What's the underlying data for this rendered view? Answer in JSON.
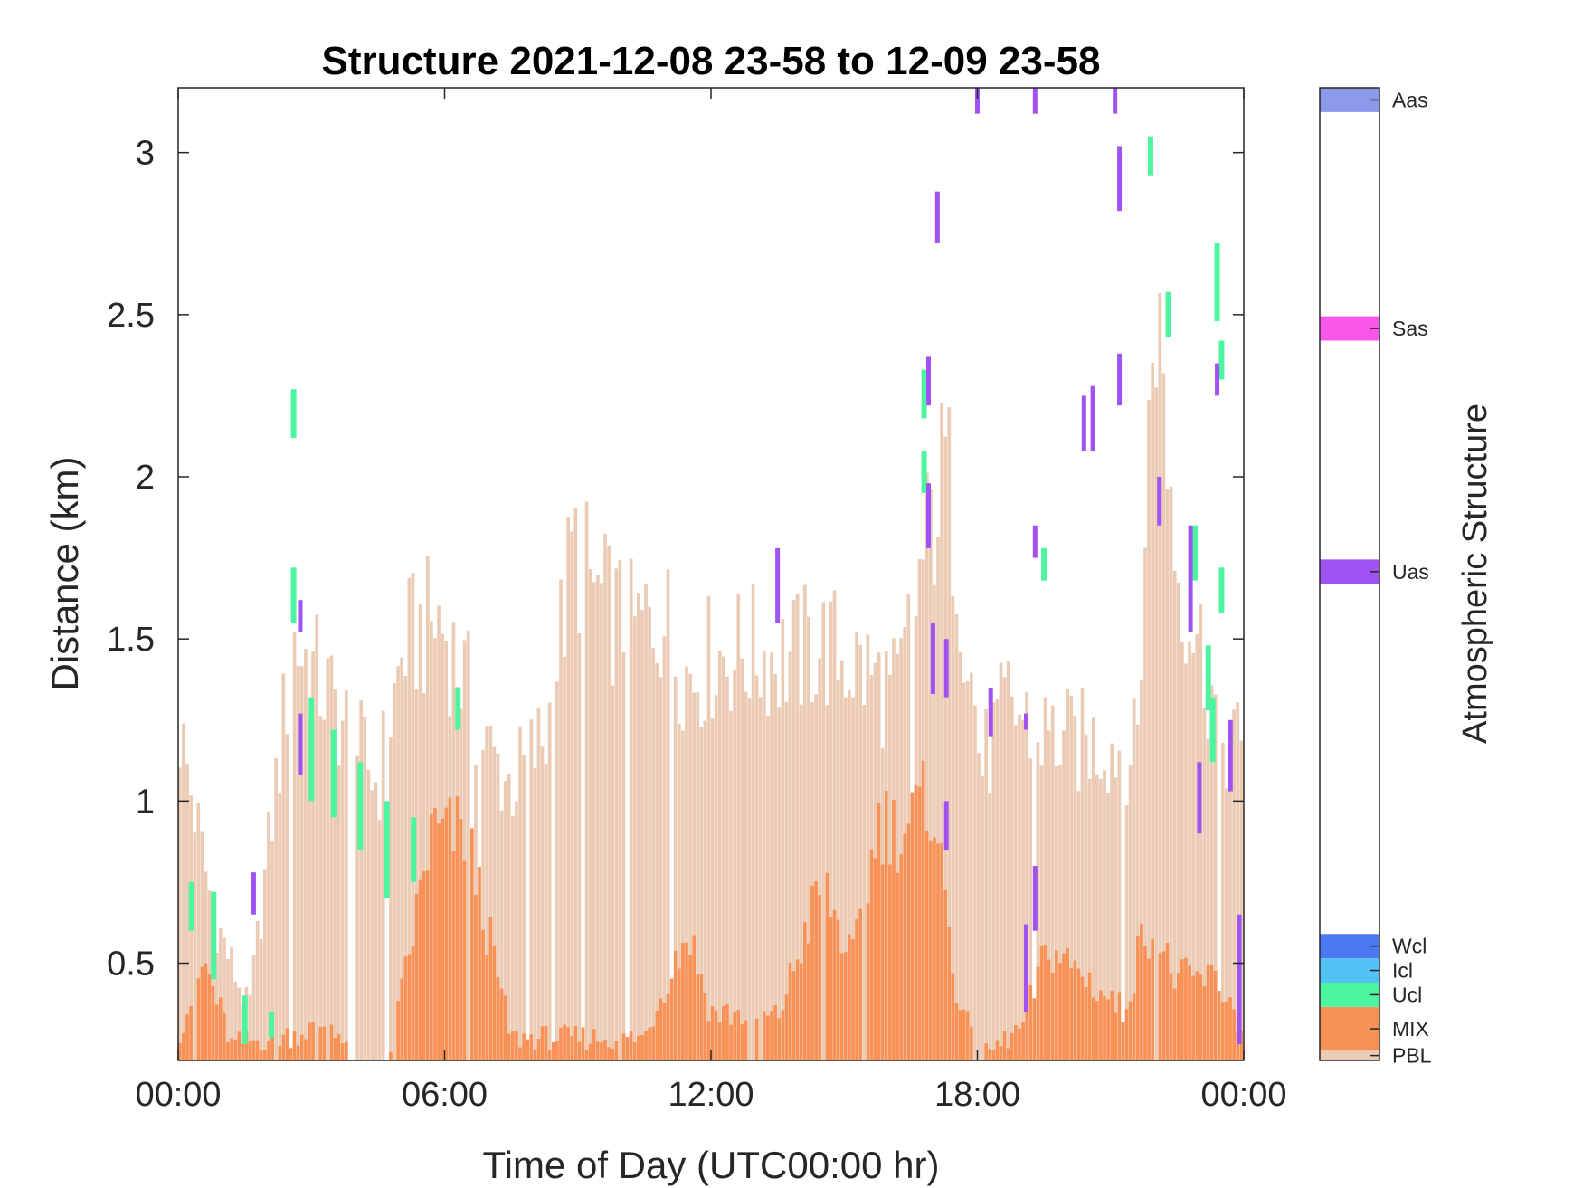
{
  "chart_data": {
    "type": "heatmap",
    "title": "Structure 2021-12-08 23-58 to 12-09 23-58",
    "xlabel": "Time of Day (UTC00:00 hr)",
    "ylabel": "Distance (km)",
    "xlim_hours": [
      0,
      24
    ],
    "ylim": [
      0.2,
      3.2
    ],
    "x_ticks": [
      {
        "value": 0,
        "label": "00:00"
      },
      {
        "value": 6,
        "label": "06:00"
      },
      {
        "value": 12,
        "label": "12:00"
      },
      {
        "value": 18,
        "label": "18:00"
      },
      {
        "value": 24,
        "label": "00:00"
      }
    ],
    "y_ticks": [
      {
        "value": 0.5,
        "label": "0.5"
      },
      {
        "value": 1.0,
        "label": "1"
      },
      {
        "value": 1.5,
        "label": "1.5"
      },
      {
        "value": 2.0,
        "label": "2"
      },
      {
        "value": 2.5,
        "label": "2.5"
      },
      {
        "value": 3.0,
        "label": "3"
      }
    ],
    "grid": false,
    "colorbar": {
      "title": "Atmospheric Structure",
      "classes": [
        {
          "name": "PBL",
          "color": "#ECCBB5",
          "from": 0.0,
          "to": 0.01
        },
        {
          "name": "MIX",
          "color": "#F89155",
          "from": 0.01,
          "to": 0.055
        },
        {
          "name": "Ucl",
          "color": "#4EF5A0",
          "from": 0.055,
          "to": 0.08
        },
        {
          "name": "Icl",
          "color": "#52C2F7",
          "from": 0.08,
          "to": 0.105
        },
        {
          "name": "Wcl",
          "color": "#4C79F1",
          "from": 0.105,
          "to": 0.13
        },
        {
          "name": "Uas",
          "color": "#A052F2",
          "from": 0.49,
          "to": 0.515
        },
        {
          "name": "Sas",
          "color": "#F857EA",
          "from": 0.74,
          "to": 0.765
        },
        {
          "name": "Aas",
          "color": "#8C98E8",
          "from": 0.975,
          "to": 1.0
        }
      ]
    },
    "series": [
      {
        "class": "PBL",
        "hour_step": 0.0833,
        "heights": [
          [
            0.0,
            1.25
          ],
          [
            0.8,
            0.65
          ],
          [
            1.6,
            0.35
          ],
          [
            2.6,
            1.5
          ],
          [
            3.5,
            1.3
          ],
          [
            4.5,
            1.05
          ],
          [
            5.1,
            1.48
          ],
          [
            5.9,
            1.56
          ],
          [
            6.5,
            1.35
          ],
          [
            7.0,
            1.15
          ],
          [
            7.5,
            1.05
          ],
          [
            8.3,
            1.2
          ],
          [
            8.9,
            1.78
          ],
          [
            9.5,
            1.62
          ],
          [
            10.2,
            1.52
          ],
          [
            10.9,
            1.58
          ],
          [
            11.5,
            1.38
          ],
          [
            12.1,
            1.45
          ],
          [
            13.0,
            1.46
          ],
          [
            13.7,
            1.44
          ],
          [
            14.5,
            1.48
          ],
          [
            15.3,
            1.42
          ],
          [
            16.2,
            1.32
          ],
          [
            16.8,
            1.75
          ],
          [
            17.3,
            2.05
          ],
          [
            17.7,
            1.58
          ],
          [
            18.1,
            1.1
          ],
          [
            18.7,
            1.3
          ],
          [
            19.3,
            1.22
          ],
          [
            20.1,
            1.18
          ],
          [
            20.9,
            1.18
          ],
          [
            21.6,
            1.15
          ],
          [
            22.0,
            2.6
          ],
          [
            22.5,
            1.72
          ],
          [
            23.0,
            1.5
          ],
          [
            23.5,
            1.2
          ],
          [
            24.0,
            1.15
          ]
        ]
      },
      {
        "class": "MIX",
        "hour_step": 0.0833,
        "heights": [
          [
            0.0,
            0.28
          ],
          [
            0.6,
            0.5
          ],
          [
            1.2,
            0.25
          ],
          [
            2.6,
            0.28
          ],
          [
            3.5,
            0.32
          ],
          [
            4.5,
            0.0
          ],
          [
            5.7,
            0.9
          ],
          [
            6.5,
            0.9
          ],
          [
            7.5,
            0.27
          ],
          [
            10.5,
            0.27
          ],
          [
            11.0,
            0.45
          ],
          [
            11.5,
            0.6
          ],
          [
            12.0,
            0.35
          ],
          [
            13.5,
            0.33
          ],
          [
            14.5,
            0.75
          ],
          [
            15.2,
            0.5
          ],
          [
            15.8,
            0.95
          ],
          [
            16.3,
            0.9
          ],
          [
            17.0,
            1.02
          ],
          [
            17.5,
            0.45
          ],
          [
            18.0,
            0.2
          ],
          [
            19.0,
            0.3
          ],
          [
            19.6,
            0.55
          ],
          [
            20.5,
            0.45
          ],
          [
            21.3,
            0.35
          ],
          [
            21.8,
            0.62
          ],
          [
            22.5,
            0.45
          ],
          [
            23.4,
            0.45
          ],
          [
            24.0,
            0.3
          ]
        ]
      }
    ],
    "ucl_segments": [
      [
        0.3,
        0.6,
        0.75
      ],
      [
        0.8,
        0.45,
        0.72
      ],
      [
        1.5,
        0.25,
        0.4
      ],
      [
        2.1,
        0.27,
        0.35
      ],
      [
        2.6,
        2.12,
        2.27
      ],
      [
        2.6,
        1.55,
        1.72
      ],
      [
        3.0,
        1.0,
        1.32
      ],
      [
        3.5,
        0.95,
        1.22
      ],
      [
        4.1,
        0.85,
        1.12
      ],
      [
        4.7,
        0.7,
        1.0
      ],
      [
        5.3,
        0.75,
        0.95
      ],
      [
        6.3,
        1.22,
        1.35
      ],
      [
        16.8,
        2.18,
        2.33
      ],
      [
        16.8,
        1.95,
        2.08
      ],
      [
        19.5,
        1.68,
        1.78
      ],
      [
        21.9,
        2.93,
        3.05
      ],
      [
        22.3,
        2.43,
        2.57
      ],
      [
        22.9,
        1.68,
        1.85
      ],
      [
        23.2,
        1.28,
        1.48
      ],
      [
        23.4,
        2.48,
        2.72
      ],
      [
        23.5,
        2.3,
        2.42
      ],
      [
        23.5,
        1.58,
        1.72
      ],
      [
        23.3,
        1.12,
        1.32
      ]
    ],
    "uas_segments": [
      [
        1.7,
        0.65,
        0.78
      ],
      [
        2.75,
        1.08,
        1.27
      ],
      [
        2.75,
        1.52,
        1.62
      ],
      [
        13.5,
        1.55,
        1.78
      ],
      [
        16.9,
        2.22,
        2.37
      ],
      [
        16.9,
        1.78,
        1.98
      ],
      [
        17.0,
        1.33,
        1.55
      ],
      [
        17.3,
        1.32,
        1.5
      ],
      [
        17.1,
        2.72,
        2.88
      ],
      [
        17.3,
        0.85,
        1.0
      ],
      [
        18.0,
        3.12,
        3.2
      ],
      [
        18.3,
        1.2,
        1.35
      ],
      [
        19.1,
        1.22,
        1.27
      ],
      [
        19.3,
        1.75,
        1.85
      ],
      [
        19.3,
        0.6,
        0.8
      ],
      [
        19.1,
        0.35,
        0.62
      ],
      [
        19.3,
        3.12,
        3.2
      ],
      [
        20.4,
        2.08,
        2.25
      ],
      [
        20.6,
        2.08,
        2.28
      ],
      [
        21.2,
        2.82,
        3.02
      ],
      [
        21.2,
        2.22,
        2.38
      ],
      [
        21.1,
        3.12,
        3.2
      ],
      [
        22.1,
        1.85,
        2.0
      ],
      [
        22.8,
        1.52,
        1.85
      ],
      [
        23.0,
        0.9,
        1.12
      ],
      [
        23.4,
        2.25,
        2.35
      ],
      [
        23.7,
        1.03,
        1.25
      ],
      [
        23.9,
        0.25,
        0.65
      ]
    ]
  }
}
